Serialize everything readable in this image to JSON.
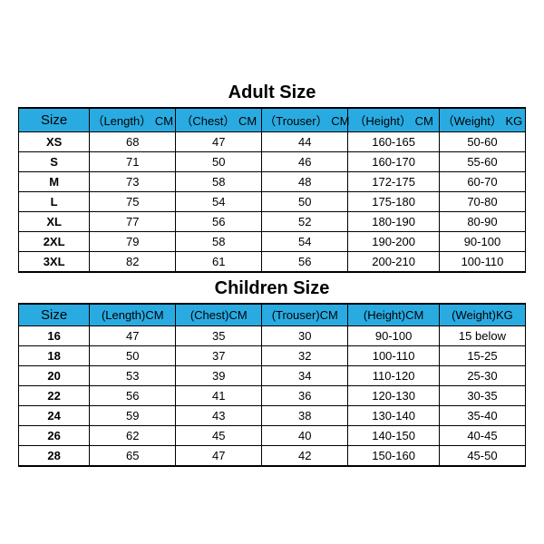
{
  "colors": {
    "header_bg": "#29abe2",
    "border": "#000000",
    "text": "#000000",
    "bg": "#ffffff"
  },
  "adult": {
    "title": "Adult Size",
    "columns": [
      "Size",
      "（Length） CM",
      "（Chest） CM",
      "（Trouser） CM",
      "（Height） CM",
      "（Weight） KG"
    ],
    "col_widths": [
      "14%",
      "17%",
      "17%",
      "17%",
      "18%",
      "17%"
    ],
    "rows": [
      [
        "XS",
        "68",
        "47",
        "44",
        "160-165",
        "50-60"
      ],
      [
        "S",
        "71",
        "50",
        "46",
        "160-170",
        "55-60"
      ],
      [
        "M",
        "73",
        "58",
        "48",
        "172-175",
        "60-70"
      ],
      [
        "L",
        "75",
        "54",
        "50",
        "175-180",
        "70-80"
      ],
      [
        "XL",
        "77",
        "56",
        "52",
        "180-190",
        "80-90"
      ],
      [
        "2XL",
        "79",
        "58",
        "54",
        "190-200",
        "90-100"
      ],
      [
        "3XL",
        "82",
        "61",
        "56",
        "200-210",
        "100-110"
      ]
    ]
  },
  "children": {
    "title": "Children Size",
    "columns": [
      "Size",
      "(Length)CM",
      "(Chest)CM",
      "(Trouser)CM",
      "(Height)CM",
      "(Weight)KG"
    ],
    "col_widths": [
      "14%",
      "17%",
      "17%",
      "17%",
      "18%",
      "17%"
    ],
    "rows": [
      [
        "16",
        "47",
        "35",
        "30",
        "90-100",
        "15 below"
      ],
      [
        "18",
        "50",
        "37",
        "32",
        "100-110",
        "15-25"
      ],
      [
        "20",
        "53",
        "39",
        "34",
        "110-120",
        "25-30"
      ],
      [
        "22",
        "56",
        "41",
        "36",
        "120-130",
        "30-35"
      ],
      [
        "24",
        "59",
        "43",
        "38",
        "130-140",
        "35-40"
      ],
      [
        "26",
        "62",
        "45",
        "40",
        "140-150",
        "40-45"
      ],
      [
        "28",
        "65",
        "47",
        "42",
        "150-160",
        "45-50"
      ]
    ]
  }
}
